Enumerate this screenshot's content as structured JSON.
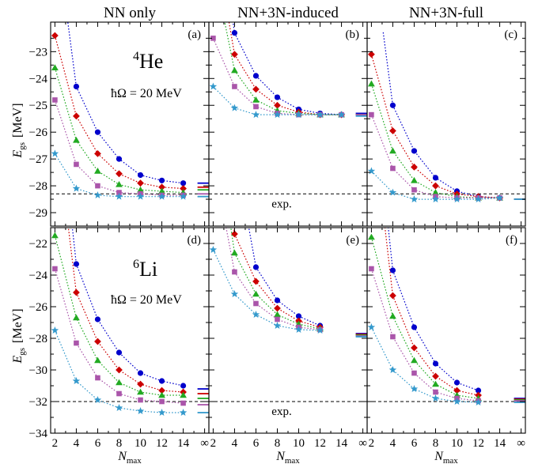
{
  "column_titles": [
    "NN only",
    "NN+3N-induced",
    "NN+3N-full"
  ],
  "x_axis": {
    "label": "N",
    "label_sub": "max",
    "tick_labels": [
      "2",
      "4",
      "6",
      "8",
      "10",
      "12",
      "14",
      "∞"
    ]
  },
  "y_axis": {
    "label": "E",
    "label_sub": "gs",
    "unit": "[MeV]"
  },
  "rows": [
    {
      "nucleus_mass": "4",
      "nucleus_symbol": "He",
      "hw_text": "ħΩ = 20 MeV",
      "ylim": [
        -29.5,
        -21.9
      ],
      "yticks": [
        -29,
        -28,
        -27,
        -26,
        -25,
        -24,
        -23
      ],
      "exp_value": -28.3,
      "exp_label": "exp."
    },
    {
      "nucleus_mass": "6",
      "nucleus_symbol": "Li",
      "hw_text": "ħΩ = 20 MeV",
      "ylim": [
        -34,
        -21
      ],
      "yticks": [
        -34,
        -32,
        -30,
        -28,
        -26,
        -24,
        -22
      ],
      "exp_value": -32.0,
      "exp_label": "exp."
    }
  ],
  "series_styles": [
    {
      "marker": "circle",
      "color": "#0000cc"
    },
    {
      "marker": "diamond",
      "color": "#cc0000"
    },
    {
      "marker": "triangle",
      "color": "#22aa22"
    },
    {
      "marker": "square",
      "color": "#aa55aa"
    },
    {
      "marker": "star",
      "color": "#3399cc"
    }
  ],
  "chart_data": [
    {
      "type": "line",
      "panel_label": "(a)",
      "x": [
        2,
        4,
        6,
        8,
        10,
        12,
        14
      ],
      "series": [
        {
          "values": [
            null,
            -24.3,
            -26.0,
            -27.0,
            -27.6,
            -27.8,
            -27.9
          ],
          "extrapolated": -27.9
        },
        {
          "values": [
            -22.4,
            -25.4,
            -26.8,
            -27.55,
            -27.9,
            -28.05,
            -28.1
          ],
          "extrapolated": -28.05
        },
        {
          "values": [
            -23.6,
            -26.3,
            -27.45,
            -27.95,
            -28.15,
            -28.2,
            -28.25
          ],
          "extrapolated": -28.15
        },
        {
          "values": [
            -24.8,
            -27.2,
            -28.0,
            -28.25,
            -28.3,
            -28.35,
            -28.35
          ],
          "extrapolated": -28.3
        },
        {
          "values": [
            -26.8,
            -28.1,
            -28.35,
            -28.4,
            -28.4,
            -28.4,
            -28.4
          ],
          "extrapolated": -28.4
        }
      ]
    },
    {
      "type": "line",
      "panel_label": "(b)",
      "x": [
        2,
        4,
        6,
        8,
        10,
        12,
        14
      ],
      "series": [
        {
          "values": [
            null,
            -22.3,
            -23.9,
            -24.7,
            -25.15,
            -25.3,
            -25.35
          ],
          "extrapolated": -25.3
        },
        {
          "values": [
            null,
            -23.1,
            -24.4,
            -25.0,
            -25.25,
            -25.35,
            -25.35
          ],
          "extrapolated": -25.35
        },
        {
          "values": [
            null,
            -23.7,
            -24.8,
            -25.2,
            -25.3,
            -25.35,
            -25.35
          ],
          "extrapolated": -25.35
        },
        {
          "values": [
            -22.5,
            -24.3,
            -25.05,
            -25.3,
            -25.35,
            -25.35,
            -25.35
          ],
          "extrapolated": -25.35
        },
        {
          "values": [
            -24.3,
            -25.1,
            -25.35,
            -25.35,
            -25.35,
            -25.35,
            -25.35
          ],
          "extrapolated": -25.4
        }
      ]
    },
    {
      "type": "line",
      "panel_label": "(c)",
      "x": [
        2,
        4,
        6,
        8,
        10,
        12,
        14
      ],
      "series": [
        {
          "values": [
            null,
            -25.0,
            -26.7,
            -27.7,
            -28.2,
            -28.4,
            -28.45
          ],
          "extrapolated": -28.5
        },
        {
          "values": [
            -23.1,
            -25.95,
            -27.3,
            -28.0,
            -28.3,
            -28.4,
            -28.45
          ],
          "extrapolated": -28.5
        },
        {
          "values": [
            -24.2,
            -26.7,
            -27.8,
            -28.25,
            -28.4,
            -28.45,
            -28.45
          ],
          "extrapolated": -28.5
        },
        {
          "values": [
            -25.35,
            -27.35,
            -28.15,
            -28.4,
            -28.45,
            -28.45,
            -28.45
          ],
          "extrapolated": -28.5
        },
        {
          "values": [
            -27.45,
            -28.25,
            -28.5,
            -28.5,
            -28.5,
            -28.5,
            -28.45
          ],
          "extrapolated": -28.5
        }
      ]
    },
    {
      "type": "line",
      "panel_label": "(d)",
      "x": [
        2,
        4,
        6,
        8,
        10,
        12,
        14
      ],
      "series": [
        {
          "values": [
            null,
            -23.3,
            -26.8,
            -28.9,
            -30.2,
            -30.7,
            -31.0
          ],
          "extrapolated": -31.2
        },
        {
          "values": [
            null,
            -25.1,
            -28.2,
            -30.0,
            -30.9,
            -31.3,
            -31.4
          ],
          "extrapolated": -31.5
        },
        {
          "values": [
            -21.5,
            -26.7,
            -29.4,
            -30.8,
            -31.4,
            -31.6,
            -31.6
          ],
          "extrapolated": -31.8
        },
        {
          "values": [
            -23.6,
            -28.3,
            -30.5,
            -31.5,
            -31.9,
            -32.0,
            -32.1
          ],
          "extrapolated": -32.2
        },
        {
          "values": [
            -27.5,
            -30.7,
            -31.9,
            -32.4,
            -32.6,
            -32.7,
            -32.7
          ],
          "extrapolated": -32.7
        }
      ]
    },
    {
      "type": "line",
      "panel_label": "(e)",
      "x": [
        2,
        4,
        6,
        8,
        10,
        12
      ],
      "series": [
        {
          "values": [
            null,
            null,
            -23.5,
            -25.6,
            -26.6,
            -27.2
          ],
          "extrapolated": -27.7
        },
        {
          "values": [
            null,
            -21.4,
            -24.4,
            -26.1,
            -26.9,
            -27.3
          ],
          "extrapolated": -27.75
        },
        {
          "values": [
            null,
            -22.6,
            -25.2,
            -26.5,
            -27.1,
            -27.4
          ],
          "extrapolated": -27.8
        },
        {
          "values": [
            null,
            -23.8,
            -25.8,
            -26.8,
            -27.3,
            -27.45
          ],
          "extrapolated": -27.85
        },
        {
          "values": [
            -22.4,
            -25.2,
            -26.5,
            -27.2,
            -27.45,
            -27.5
          ],
          "extrapolated": -27.9
        }
      ]
    },
    {
      "type": "line",
      "panel_label": "(f)",
      "x": [
        2,
        4,
        6,
        8,
        10,
        12
      ],
      "series": [
        {
          "values": [
            null,
            -23.7,
            -27.3,
            -29.6,
            -30.8,
            -31.3
          ],
          "extrapolated": -31.8
        },
        {
          "values": [
            null,
            -25.3,
            -28.6,
            -30.4,
            -31.3,
            -31.6
          ],
          "extrapolated": -31.85
        },
        {
          "values": [
            -21.6,
            -26.6,
            -29.4,
            -30.9,
            -31.6,
            -31.8
          ],
          "extrapolated": -31.9
        },
        {
          "values": [
            -23.6,
            -27.9,
            -30.2,
            -31.4,
            -31.8,
            -31.95
          ],
          "extrapolated": -31.95
        },
        {
          "values": [
            -27.3,
            -30.0,
            -31.2,
            -31.8,
            -32.0,
            -32.05
          ],
          "extrapolated": -32.05
        }
      ]
    }
  ]
}
